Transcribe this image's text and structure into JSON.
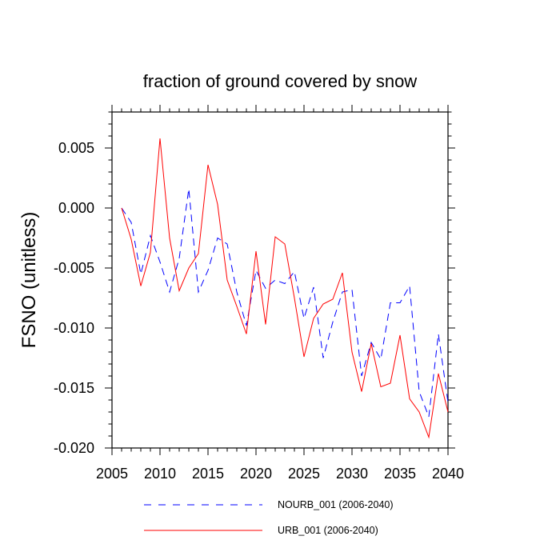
{
  "chart_data": {
    "type": "line",
    "title": "fraction of ground covered by snow",
    "xlabel": "",
    "ylabel": "FSNO  (unitless)",
    "xlim": [
      2005,
      2040
    ],
    "ylim": [
      -0.02,
      0.008
    ],
    "x_ticks": [
      2005,
      2010,
      2015,
      2020,
      2025,
      2030,
      2035,
      2040
    ],
    "x_tick_labels": [
      "2005",
      "2010",
      "2015",
      "2020",
      "2025",
      "2030",
      "2035",
      "2040"
    ],
    "y_ticks": [
      0.005,
      0.0,
      -0.005,
      -0.01,
      -0.015,
      -0.02
    ],
    "y_tick_labels": [
      "0.005",
      "0.000",
      "-0.005",
      "-0.010",
      "-0.015",
      "-0.020"
    ],
    "grid": false,
    "legend_position": "bottom",
    "x": [
      2006,
      2007,
      2008,
      2009,
      2010,
      2011,
      2012,
      2013,
      2014,
      2015,
      2016,
      2017,
      2018,
      2019,
      2020,
      2021,
      2022,
      2023,
      2024,
      2025,
      2026,
      2027,
      2028,
      2029,
      2030,
      2031,
      2032,
      2033,
      2034,
      2035,
      2036,
      2037,
      2038,
      2039,
      2040
    ],
    "series": [
      {
        "name": "NOURB_001 (2006-2040)",
        "color": "#0000ff",
        "dash": "dashed",
        "values": [
          0.0,
          -0.0012,
          -0.0055,
          -0.0023,
          -0.0045,
          -0.007,
          -0.0042,
          0.0016,
          -0.007,
          -0.0052,
          -0.0025,
          -0.003,
          -0.007,
          -0.0098,
          -0.0052,
          -0.0067,
          -0.006,
          -0.0063,
          -0.0053,
          -0.0092,
          -0.0066,
          -0.0125,
          -0.0095,
          -0.007,
          -0.0068,
          -0.014,
          -0.0112,
          -0.0126,
          -0.0079,
          -0.0079,
          -0.0065,
          -0.0153,
          -0.0174,
          -0.0105,
          -0.0162
        ]
      },
      {
        "name": "URB_001 (2006-2040)",
        "color": "#ff0000",
        "dash": "solid",
        "values": [
          0.0,
          -0.0026,
          -0.0065,
          -0.0037,
          0.0058,
          -0.0025,
          -0.0069,
          -0.005,
          -0.0038,
          0.0036,
          0.0003,
          -0.006,
          -0.0082,
          -0.0105,
          -0.0036,
          -0.0097,
          -0.0024,
          -0.003,
          -0.0075,
          -0.0124,
          -0.0092,
          -0.008,
          -0.0076,
          -0.0054,
          -0.012,
          -0.0153,
          -0.0113,
          -0.0149,
          -0.0146,
          -0.0106,
          -0.0159,
          -0.017,
          -0.0191,
          -0.0138,
          -0.017
        ]
      }
    ]
  }
}
